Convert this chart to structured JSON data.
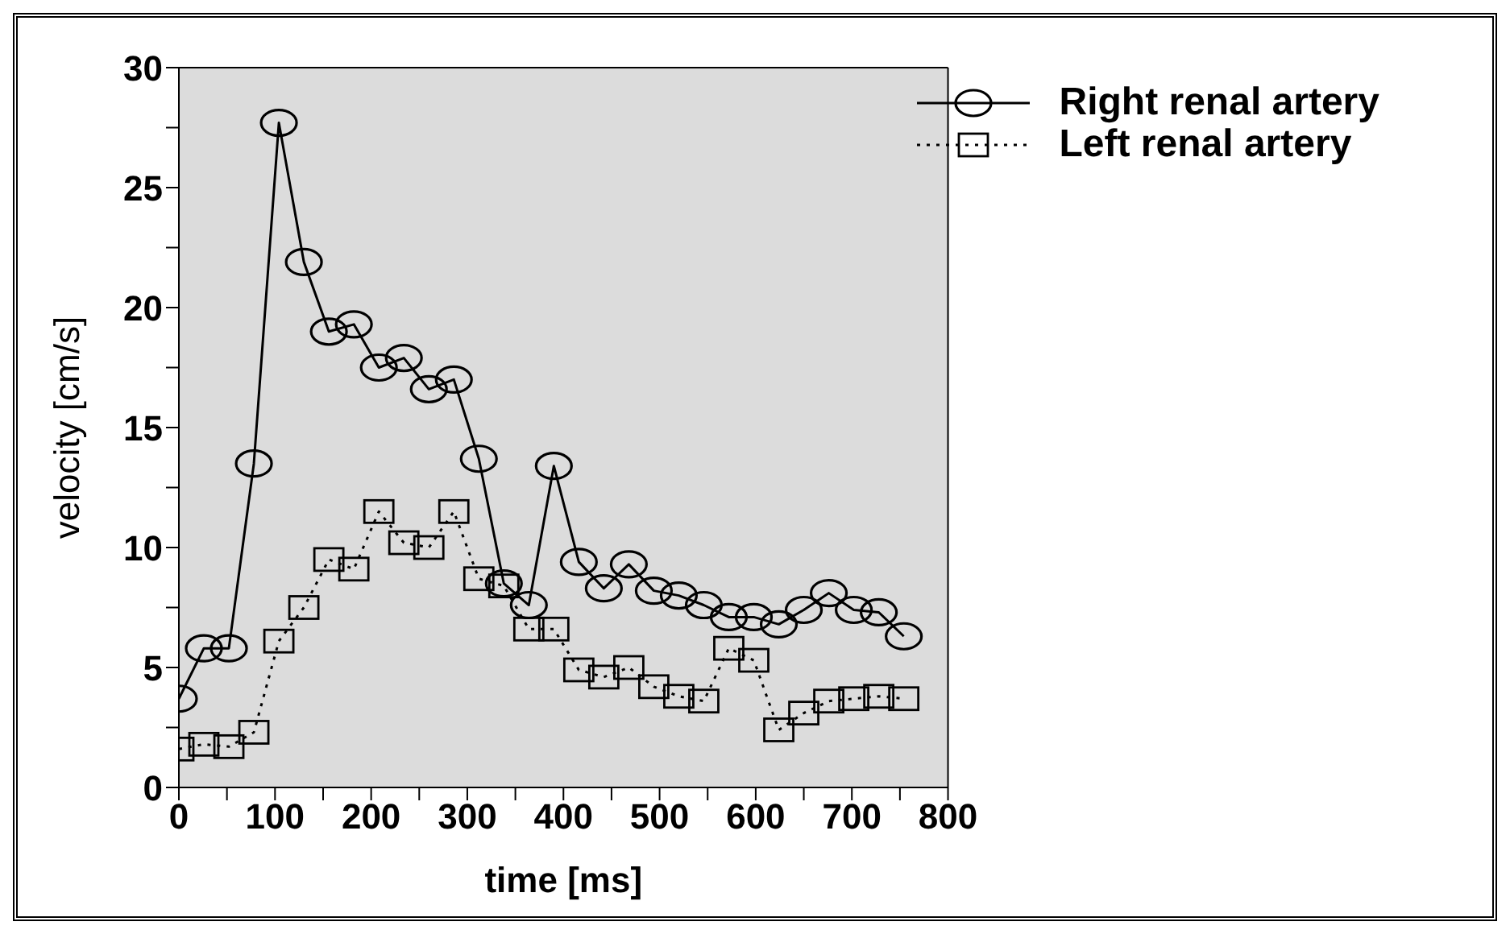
{
  "chart_data": {
    "type": "line",
    "xlabel": "time [ms]",
    "ylabel": "velocity [cm/s]",
    "x": [
      0,
      26,
      52,
      78,
      104,
      130,
      156,
      182,
      208,
      234,
      260,
      286,
      312,
      338,
      364,
      390,
      416,
      442,
      468,
      494,
      520,
      546,
      572,
      598,
      624,
      650,
      676,
      702,
      728,
      754
    ],
    "series": [
      {
        "name": "Right renal artery",
        "color": "#000000",
        "marker": "circle",
        "line_style": "solid",
        "values": [
          3.7,
          5.8,
          5.8,
          13.5,
          27.7,
          21.9,
          19.0,
          19.3,
          17.5,
          17.9,
          16.6,
          17.0,
          13.7,
          8.5,
          7.6,
          13.4,
          9.4,
          8.3,
          9.3,
          8.2,
          8.0,
          7.6,
          7.1,
          7.1,
          6.8,
          7.4,
          8.1,
          7.4,
          7.3,
          6.3
        ]
      },
      {
        "name": "Left renal artery",
        "color": "#000000",
        "marker": "square",
        "line_style": "dotted",
        "values": [
          1.6,
          1.8,
          1.7,
          2.3,
          6.1,
          7.5,
          9.5,
          9.1,
          11.5,
          10.2,
          10.0,
          11.5,
          8.7,
          8.4,
          6.6,
          6.6,
          4.9,
          4.6,
          5.0,
          4.2,
          3.8,
          3.6,
          5.8,
          5.3,
          2.4,
          3.1,
          3.6,
          3.7,
          3.8,
          3.7
        ]
      }
    ],
    "xlim": [
      0,
      800
    ],
    "xticks": [
      0,
      {
        "value": 50,
        "label": null
      },
      100,
      {
        "value": 150,
        "label": null
      },
      200,
      {
        "value": 250,
        "label": null
      },
      300,
      {
        "value": 350,
        "label": null
      },
      400,
      {
        "value": 450,
        "label": null
      },
      500,
      {
        "value": 550,
        "label": null
      },
      600,
      {
        "value": 650,
        "label": null
      },
      700,
      {
        "value": 750,
        "label": null
      },
      800
    ],
    "ylim": [
      0,
      30
    ],
    "yticks": [
      0,
      {
        "value": 2.5,
        "label": null
      },
      5,
      {
        "value": 7.5,
        "label": null
      },
      10,
      {
        "value": 12.5,
        "label": null
      },
      15,
      {
        "value": 17.5,
        "label": null
      },
      20,
      {
        "value": 22.5,
        "label": null
      },
      25,
      {
        "value": 27.5,
        "label": null
      },
      30
    ],
    "legend": "top right",
    "grid": false
  }
}
